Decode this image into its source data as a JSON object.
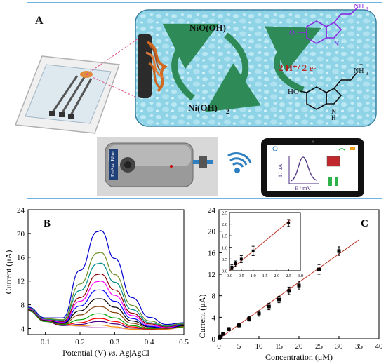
{
  "panel_a": {
    "label": "A",
    "nioh_label": "NiO(OH)",
    "nioh2_label": "Ni(OH)",
    "nioh2_sub": "2",
    "proton_label": "2 H⁺/ 2 e-",
    "ho_label": "HO",
    "nh_label": "N",
    "nh_h": "H",
    "nh3_label": "NH",
    "nh3_sub": "3",
    "nh3_plus": "+",
    "o_label": "O",
    "device_label": "EmStat Blue",
    "tablet_ylabel": "i / μA",
    "tablet_xlabel": "E / mV",
    "colors": {
      "bubble_bg": "#8fd3e6",
      "green_arrow": "#2e8b57",
      "stop_red": "#c1272d",
      "pause_green": "#2eb34a",
      "molecule_purple": "#8a2be2"
    }
  },
  "chart_data": [
    {
      "type": "line",
      "panel": "B",
      "xlabel_pre": "Potential (V) ",
      "xlabel_vs": "vs.",
      "xlabel_post": " Ag|AgCl",
      "ylabel": "Current (μA)",
      "xlim": [
        0.05,
        0.5
      ],
      "ylim": [
        3,
        24
      ],
      "xticks": [
        "0.1",
        "0.2",
        "0.3",
        "0.4",
        "0.5"
      ],
      "yticks": [
        "4",
        "8",
        "12",
        "16",
        "20",
        "24"
      ],
      "x": [
        0.05,
        0.1,
        0.15,
        0.2,
        0.25,
        0.26,
        0.3,
        0.35,
        0.4,
        0.45,
        0.5
      ],
      "series": [
        {
          "color": "#d4a0d4",
          "values": [
            7.2,
            5.4,
            4.7,
            4.4,
            4.2,
            4.2,
            4.1,
            3.9,
            3.8,
            3.9,
            4.2
          ]
        },
        {
          "color": "#ff8c00",
          "values": [
            7.1,
            5.3,
            4.6,
            4.5,
            4.6,
            4.6,
            4.3,
            3.9,
            3.8,
            3.9,
            4.3
          ]
        },
        {
          "color": "#4b0082",
          "values": [
            7.0,
            5.2,
            4.5,
            4.7,
            5.2,
            5.2,
            4.8,
            4.1,
            3.9,
            4.0,
            4.4
          ]
        },
        {
          "color": "#ff0000",
          "values": [
            7.1,
            5.3,
            4.6,
            5.0,
            5.7,
            5.7,
            5.2,
            4.3,
            3.9,
            4.0,
            4.3
          ]
        },
        {
          "color": "#00a000",
          "values": [
            7.0,
            5.2,
            4.7,
            5.5,
            6.5,
            6.5,
            5.8,
            4.5,
            4.0,
            4.0,
            4.3
          ]
        },
        {
          "color": "#8b4513",
          "values": [
            7.1,
            5.3,
            4.8,
            6.3,
            7.7,
            7.7,
            6.7,
            4.9,
            4.1,
            4.0,
            4.4
          ]
        },
        {
          "color": "#000000",
          "values": [
            7.2,
            5.4,
            4.9,
            7.0,
            9.0,
            9.0,
            7.6,
            5.3,
            4.3,
            4.1,
            4.5
          ]
        },
        {
          "color": "#0000ff",
          "values": [
            7.3,
            5.5,
            5.0,
            7.8,
            10.5,
            10.5,
            8.6,
            5.7,
            4.4,
            4.1,
            4.6
          ]
        },
        {
          "color": "#ff00ff",
          "values": [
            7.3,
            5.5,
            5.1,
            8.6,
            11.9,
            12.0,
            9.6,
            6.2,
            4.6,
            4.2,
            4.7
          ]
        },
        {
          "color": "#8b0000",
          "values": [
            7.4,
            5.6,
            5.2,
            9.2,
            13.1,
            13.2,
            10.5,
            6.6,
            4.8,
            4.3,
            4.7
          ]
        },
        {
          "color": "#008b8b",
          "values": [
            7.4,
            5.6,
            5.4,
            10.4,
            14.9,
            15.0,
            11.8,
            7.2,
            5.0,
            4.4,
            4.8
          ]
        },
        {
          "color": "#6b8e23",
          "values": [
            7.5,
            5.7,
            5.5,
            11.5,
            16.7,
            16.8,
            13.1,
            7.9,
            5.3,
            4.5,
            4.9
          ]
        },
        {
          "color": "#0000cd",
          "values": [
            7.6,
            5.8,
            5.8,
            13.8,
            20.3,
            20.5,
            15.8,
            9.2,
            5.9,
            4.7,
            5.0
          ]
        }
      ]
    },
    {
      "type": "scatter",
      "panel": "C",
      "xlabel": "Concentration (μM)",
      "ylabel": "Current (μA)",
      "xlim": [
        0,
        40
      ],
      "ylim": [
        0,
        24
      ],
      "xticks": [
        "0",
        "5",
        "10",
        "15",
        "20",
        "25",
        "30",
        "35",
        "40"
      ],
      "yticks": [
        "0",
        "4",
        "8",
        "12",
        "16",
        "20",
        "24"
      ],
      "points": [
        {
          "x": 0.1,
          "y": 0.1,
          "err": 0.2
        },
        {
          "x": 0.25,
          "y": 0.3,
          "err": 0.2
        },
        {
          "x": 0.5,
          "y": 0.5,
          "err": 0.2
        },
        {
          "x": 1,
          "y": 0.9,
          "err": 0.2
        },
        {
          "x": 2.5,
          "y": 1.8,
          "err": 0.3
        },
        {
          "x": 5,
          "y": 2.5,
          "err": 0.3
        },
        {
          "x": 7.5,
          "y": 3.7,
          "err": 0.4
        },
        {
          "x": 10,
          "y": 4.7,
          "err": 0.5
        },
        {
          "x": 12.5,
          "y": 6.0,
          "err": 0.6
        },
        {
          "x": 15,
          "y": 7.3,
          "err": 0.6
        },
        {
          "x": 17.5,
          "y": 8.9,
          "err": 0.7
        },
        {
          "x": 20,
          "y": 9.9,
          "err": 0.8
        },
        {
          "x": 25,
          "y": 12.9,
          "err": 0.9
        },
        {
          "x": 30,
          "y": 16.3,
          "err": 0.8
        }
      ],
      "fit": {
        "x0": 0,
        "y0": 0,
        "x1": 35,
        "y1": 18.4
      },
      "inset": {
        "xlim": [
          0,
          3
        ],
        "ylim": [
          0,
          2.5
        ],
        "xticks": [
          "0.0",
          "0.5",
          "1.0",
          "1.5",
          "2.0",
          "2.5",
          "3.0"
        ],
        "yticks": [
          "0.0",
          "0.5",
          "1.0",
          "1.5",
          "2.0",
          "2.5"
        ],
        "points": [
          {
            "x": 0.1,
            "y": 0.15,
            "err": 0.1
          },
          {
            "x": 0.25,
            "y": 0.3,
            "err": 0.12
          },
          {
            "x": 0.5,
            "y": 0.5,
            "err": 0.15
          },
          {
            "x": 1.0,
            "y": 0.85,
            "err": 0.2
          },
          {
            "x": 2.5,
            "y": 2.05,
            "err": 0.15
          }
        ],
        "fit": {
          "x0": 0,
          "y0": 0.0,
          "x1": 2.6,
          "y1": 2.2
        }
      }
    }
  ]
}
